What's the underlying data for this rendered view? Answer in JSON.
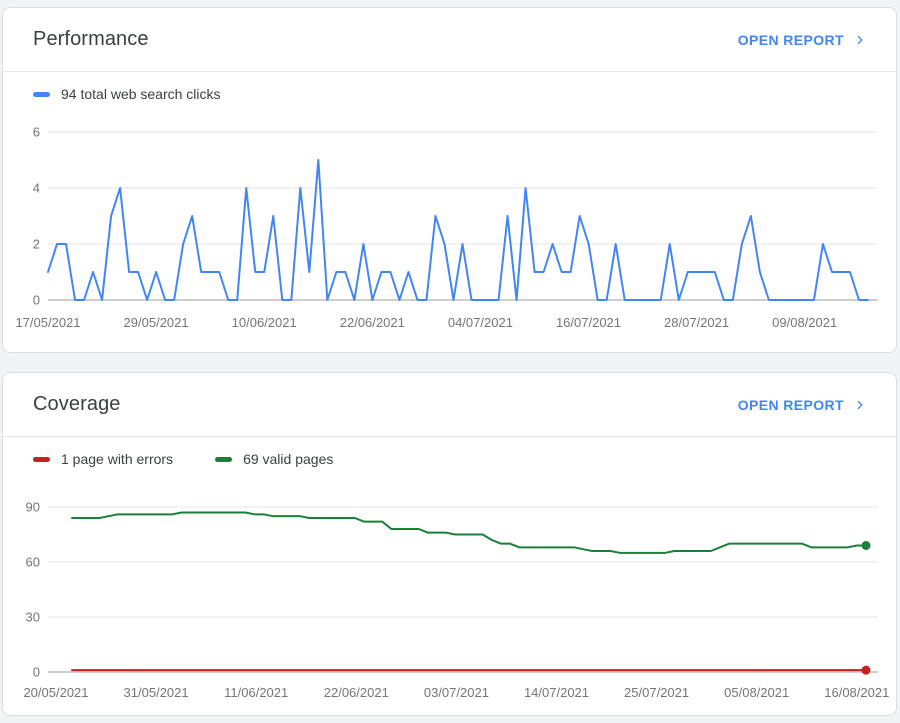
{
  "performance": {
    "title": "Performance",
    "open_report": "OPEN REPORT",
    "legend": [
      {
        "label": "94 total web search clicks",
        "color": "#4285f4"
      }
    ],
    "chart_data": {
      "type": "line",
      "title": "94 total web search clicks",
      "total_clicks": 94,
      "ylim": [
        0,
        6
      ],
      "y_ticks": [
        0,
        2,
        4,
        6
      ],
      "grid": true,
      "legend_position": "top-left",
      "x_tick_labels": [
        "17/05/2021",
        "29/05/2021",
        "10/06/2021",
        "22/06/2021",
        "04/07/2021",
        "16/07/2021",
        "28/07/2021",
        "09/08/2021"
      ],
      "x_tick_interval_days": 12,
      "series": [
        {
          "name": "94 total web search clicks",
          "color": "#4285f4",
          "values": [
            1,
            2,
            2,
            0,
            0,
            1,
            0,
            3,
            4,
            1,
            1,
            0,
            1,
            0,
            0,
            2,
            3,
            1,
            1,
            1,
            0,
            0,
            4,
            1,
            1,
            3,
            0,
            0,
            4,
            1,
            5,
            0,
            1,
            1,
            0,
            2,
            0,
            1,
            1,
            0,
            1,
            0,
            0,
            3,
            2,
            0,
            2,
            0,
            0,
            0,
            0,
            3,
            0,
            4,
            1,
            1,
            2,
            1,
            1,
            3,
            2,
            0,
            0,
            2,
            0,
            0,
            0,
            0,
            0,
            2,
            0,
            1,
            1,
            1,
            1,
            0,
            0,
            2,
            3,
            1,
            0,
            0,
            0,
            0,
            0,
            0,
            2,
            1,
            1,
            1,
            0,
            0
          ]
        }
      ]
    }
  },
  "coverage": {
    "title": "Coverage",
    "open_report": "OPEN REPORT",
    "legend": [
      {
        "label": "1 page with errors",
        "color": "#c5221f"
      },
      {
        "label": "69 valid pages",
        "color": "#188038"
      }
    ],
    "chart_data": {
      "type": "line",
      "ylim": [
        0,
        90
      ],
      "y_ticks": [
        0,
        30,
        60,
        90
      ],
      "grid": true,
      "legend_position": "top-left",
      "x_tick_labels": [
        "20/05/2021",
        "31/05/2021",
        "11/06/2021",
        "22/06/2021",
        "03/07/2021",
        "14/07/2021",
        "25/07/2021",
        "05/08/2021",
        "16/08/2021"
      ],
      "x_tick_interval_days": 11,
      "series": [
        {
          "name": "69 valid pages",
          "color": "#188038",
          "end_dot": true,
          "values": [
            84,
            84,
            84,
            84,
            85,
            86,
            86,
            86,
            86,
            86,
            86,
            86,
            87,
            87,
            87,
            87,
            87,
            87,
            87,
            87,
            86,
            86,
            85,
            85,
            85,
            85,
            84,
            84,
            84,
            84,
            84,
            84,
            82,
            82,
            82,
            78,
            78,
            78,
            78,
            76,
            76,
            76,
            75,
            75,
            75,
            75,
            72,
            70,
            70,
            68,
            68,
            68,
            68,
            68,
            68,
            68,
            67,
            66,
            66,
            66,
            65,
            65,
            65,
            65,
            65,
            65,
            66,
            66,
            66,
            66,
            66,
            68,
            70,
            70,
            70,
            70,
            70,
            70,
            70,
            70,
            70,
            68,
            68,
            68,
            68,
            68,
            69,
            69
          ]
        },
        {
          "name": "1 page with errors",
          "color": "#c5221f",
          "end_dot": true,
          "values": [
            1,
            1,
            1,
            1,
            1,
            1,
            1,
            1,
            1,
            1,
            1,
            1,
            1,
            1,
            1,
            1,
            1,
            1,
            1,
            1,
            1,
            1,
            1,
            1,
            1,
            1,
            1,
            1,
            1,
            1,
            1,
            1,
            1,
            1,
            1,
            1,
            1,
            1,
            1,
            1,
            1,
            1,
            1,
            1,
            1,
            1,
            1,
            1,
            1,
            1,
            1,
            1,
            1,
            1,
            1,
            1,
            1,
            1,
            1,
            1,
            1,
            1,
            1,
            1,
            1,
            1,
            1,
            1,
            1,
            1,
            1,
            1,
            1,
            1,
            1,
            1,
            1,
            1,
            1,
            1,
            1,
            1,
            1,
            1,
            1,
            1,
            1,
            1
          ]
        }
      ]
    }
  }
}
